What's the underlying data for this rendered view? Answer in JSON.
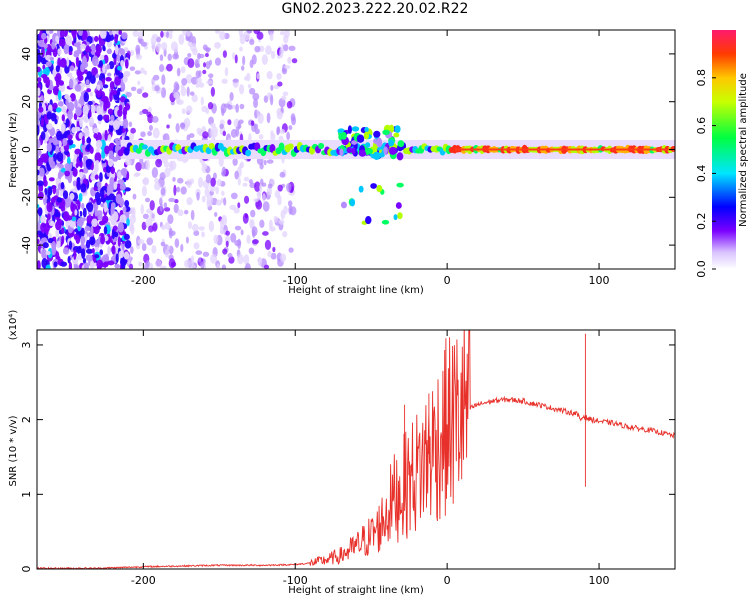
{
  "title": "GN02.2023.222.20.02.R22",
  "chart_data": [
    {
      "type": "heatmap",
      "xlabel": "Height of straight line (km)",
      "ylabel": "Frequency (Hz)",
      "xlim": [
        -270,
        150
      ],
      "ylim": [
        -50,
        50
      ],
      "x_ticks": [
        -200,
        -100,
        0,
        100
      ],
      "y_ticks": [
        -40,
        -20,
        0,
        20,
        40
      ],
      "colorbar": {
        "label": "Normalized spectral amplitude",
        "range": [
          0,
          1
        ],
        "ticks": [
          0.0,
          0.2,
          0.4,
          0.6,
          0.8
        ]
      },
      "features": {
        "broadband_noise_region_km": [
          -270,
          -100
        ],
        "dense_noise_region_km": [
          -270,
          -210
        ],
        "signal_track_start_km": -215,
        "signal_track_frequency_hz": 0,
        "disturbance_center_km": -50,
        "disturbance_peak_frequency_hz": 12,
        "disturbance_low_frequency_hz": -32
      }
    },
    {
      "type": "line",
      "xlabel": "Height of straight line (km)",
      "ylabel": "SNR (10 * v/v)",
      "y_multiplier": "(x10⁴)",
      "xlim": [
        -270,
        150
      ],
      "ylim": [
        0,
        3.2
      ],
      "x_ticks": [
        -200,
        -100,
        0,
        100
      ],
      "y_ticks": [
        0,
        1,
        2,
        3
      ],
      "line_color": "#e8302a",
      "series": [
        {
          "x": [
            -270,
            -230,
            -200,
            -150,
            -120,
            -100,
            -90,
            -80,
            -70,
            -60,
            -50,
            -45,
            -40,
            -35,
            -30,
            -25,
            -20,
            -15,
            -10,
            -5,
            0,
            5,
            10,
            20,
            30,
            40,
            50,
            55,
            60,
            70,
            80,
            85,
            88,
            90,
            92,
            95,
            100,
            110,
            120,
            130,
            140,
            150
          ],
          "values": [
            0.01,
            0.01,
            0.03,
            0.05,
            0.05,
            0.06,
            0.08,
            0.12,
            0.18,
            0.3,
            0.45,
            0.55,
            0.75,
            0.95,
            1.05,
            1.2,
            1.3,
            1.45,
            1.6,
            1.75,
            1.9,
            2.0,
            2.1,
            2.2,
            2.25,
            2.27,
            2.25,
            2.22,
            2.2,
            2.15,
            2.1,
            2.08,
            2.0,
            2.05,
            2.02,
            2.0,
            1.98,
            1.95,
            1.9,
            1.87,
            1.83,
            1.78
          ]
        }
      ],
      "spikes": [
        {
          "x": -28,
          "value": 2.2
        },
        {
          "x": -12,
          "value": 2.35
        },
        {
          "x": 91,
          "value": 3.15
        },
        {
          "x": 91,
          "value": 1.1
        }
      ]
    }
  ]
}
